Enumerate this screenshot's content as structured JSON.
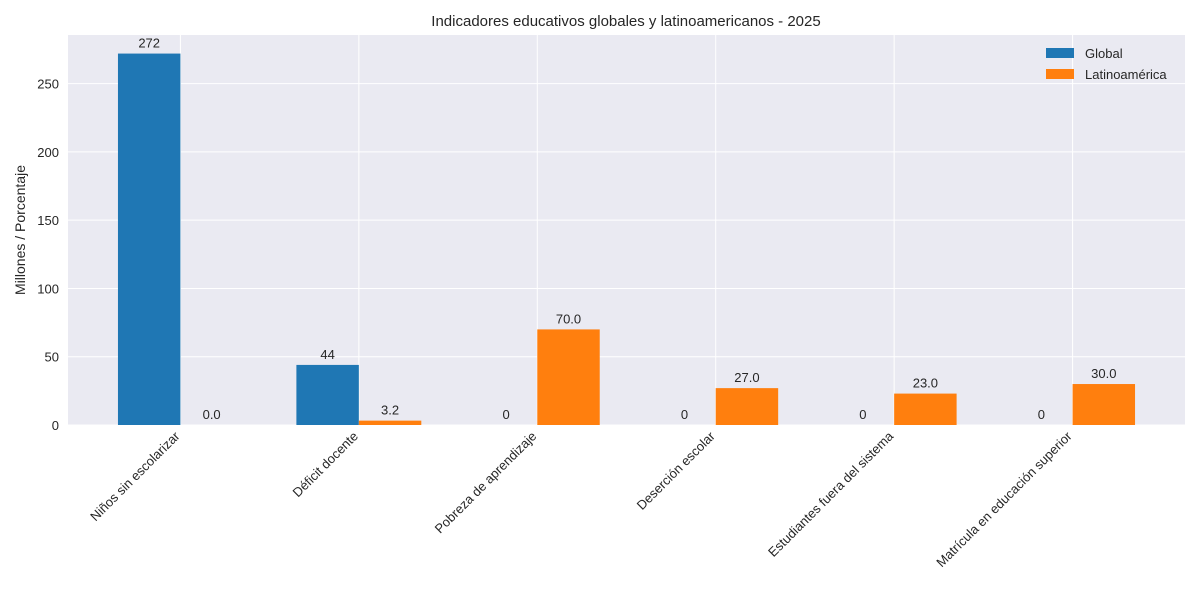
{
  "chart_data": {
    "type": "bar",
    "title": "Indicadores educativos globales y latinoamericanos - 2025",
    "xlabel": "",
    "ylabel": "Millones / Porcentaje",
    "categories": [
      "Niños sin escolarizar",
      "Déficit docente",
      "Pobreza de aprendizaje",
      "Deserción escolar",
      "Estudiantes fuera del sistema",
      "Matrícula en educación superior"
    ],
    "series": [
      {
        "name": "Global",
        "color": "#1f77b4",
        "values": [
          272,
          44,
          0,
          0,
          0,
          0
        ],
        "labels": [
          "272",
          "44",
          "0",
          "0",
          "0",
          "0"
        ]
      },
      {
        "name": "Latinoamérica",
        "color": "#ff7f0e",
        "values": [
          0.0,
          3.2,
          70.0,
          27.0,
          23.0,
          30.0
        ],
        "labels": [
          "0.0",
          "3.2",
          "70.0",
          "27.0",
          "23.0",
          "30.0"
        ]
      }
    ],
    "ylim": [
      0,
      285.6
    ],
    "yticks": [
      0,
      50,
      100,
      150,
      200,
      250
    ],
    "grid": true,
    "legend": "top-right",
    "background": "#eaeaf2"
  }
}
